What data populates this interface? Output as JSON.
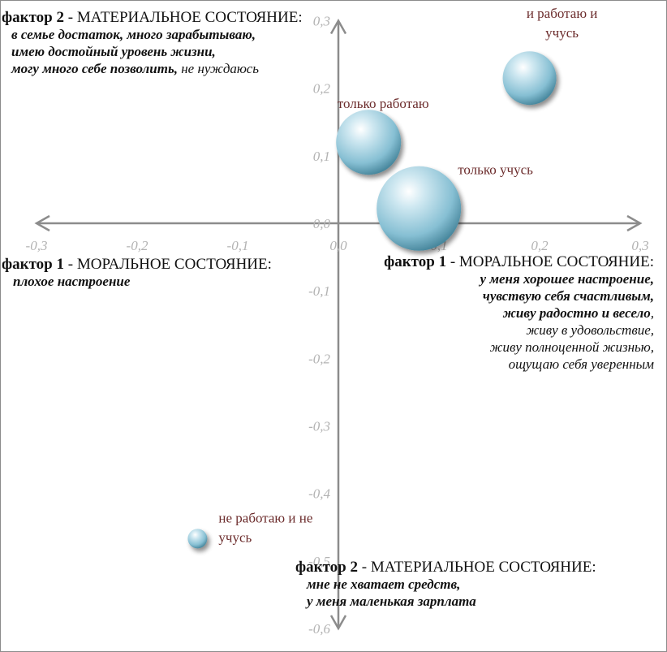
{
  "chart_data": {
    "type": "scatter",
    "title": "",
    "xlabel": "",
    "ylabel": "",
    "xlim": [
      -0.3,
      0.3
    ],
    "ylim": [
      -0.6,
      0.3
    ],
    "grid": false,
    "x_ticks": [
      "-0,3",
      "-0,2",
      "-0,1",
      "0,0",
      "0,1",
      "0,2",
      "0,3"
    ],
    "y_ticks": [
      "0,3",
      "0,2",
      "0,1",
      "0,0",
      "-0,1",
      "-0,2",
      "-0,3",
      "-0,4",
      "-0,5",
      "-0,6"
    ],
    "bubble_color": "#8fc6d8",
    "axis_color": "#8c8c8c",
    "points": [
      {
        "label": "и работаю и учусь",
        "label_lines": [
          "и работаю и",
          "учусь"
        ],
        "x": 0.19,
        "y": 0.215,
        "size": 2
      },
      {
        "label": "только работаю",
        "label_lines": [
          "только работаю"
        ],
        "x": 0.03,
        "y": 0.12,
        "size": 3
      },
      {
        "label": "только учусь",
        "label_lines": [
          "только учусь"
        ],
        "x": 0.08,
        "y": 0.022,
        "size": 4
      },
      {
        "label": "не работаю и не учусь",
        "label_lines": [
          "не работаю и не",
          "учусь"
        ],
        "x": -0.14,
        "y": -0.467,
        "size": 1
      }
    ]
  },
  "annotations": {
    "top_left": {
      "factor": "фактор 2",
      "dash": " - ",
      "title": "МАТЕРИАЛЬНОЕ  СОСТОЯНИЕ:",
      "line1": "в семье достаток, много зарабытываю,",
      "line2": "имею достойный уровень жизни,",
      "line3_bold": "могу много себе позволить,",
      "line3_rest": " не нуждаюсь"
    },
    "mid_left": {
      "factor": "фактор 1",
      "dash": " - ",
      "title": "МОРАЛЬНОЕ СОСТОЯНИЕ:",
      "line1": "плохое настроение"
    },
    "mid_right": {
      "factor": "фактор 1",
      "dash": "  - ",
      "title": "МОРАЛЬНОЕ СОСТОЯНИЕ:",
      "line1": "у меня хорошее настроение,",
      "line2": "чувствую себя счастливым,",
      "line3_bold": "живу радостно и весело",
      "line3_rest": ",",
      "line4": "живу в удовольствие,",
      "line5": "живу полноценной жизнью,",
      "line6": "ощущаю себя уверенным"
    },
    "bottom": {
      "factor": "фактор 2",
      "dash": " - ",
      "title": "МАТЕРИАЛЬНОЕ  СОСТОЯНИЕ:",
      "line1": "мне не хватает средств,",
      "line2": "у меня маленькая зарплата"
    }
  }
}
